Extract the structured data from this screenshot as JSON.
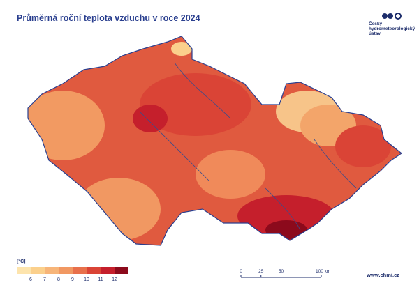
{
  "header": {
    "title": "Průměrná roční teplota vzduchu v roce 2024"
  },
  "logo": {
    "lines": [
      "Český",
      "hydrometeorologický",
      "ústav"
    ]
  },
  "legend": {
    "unit": "[°C]",
    "colors": [
      "#fde4ad",
      "#fbd08c",
      "#f7b579",
      "#f19862",
      "#e8704b",
      "#da4436",
      "#c51f2c",
      "#8c0a1c"
    ],
    "labels": [
      6,
      7,
      8,
      9,
      10,
      11,
      12
    ]
  },
  "scale_bar": {
    "labels": [
      "0",
      "25",
      "50",
      "100 km"
    ]
  },
  "footer": {
    "url": "www.chmi.cz"
  }
}
